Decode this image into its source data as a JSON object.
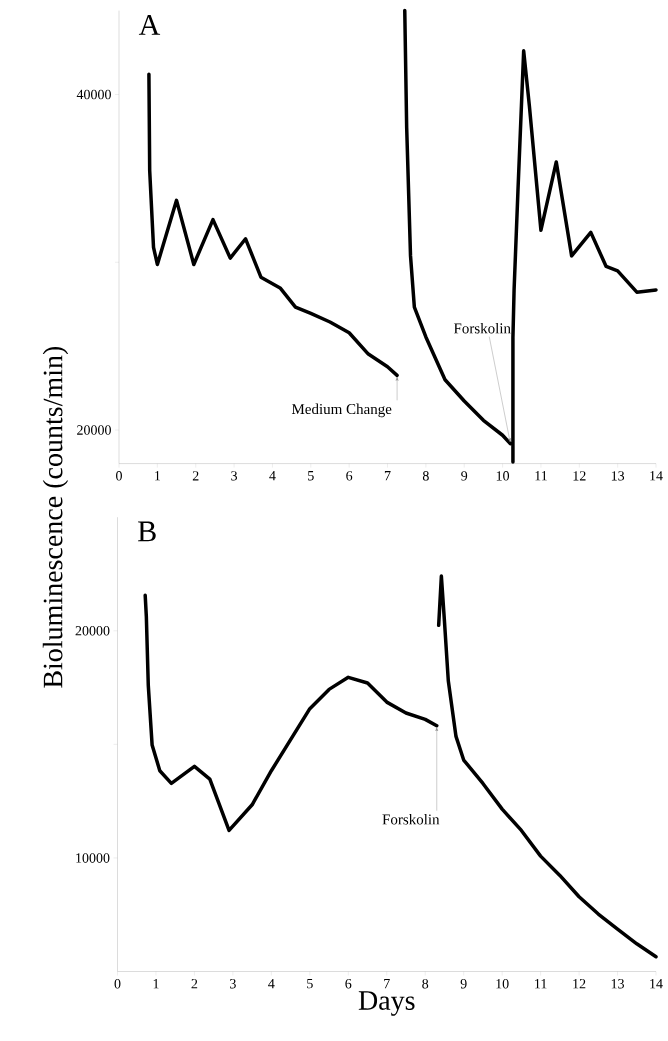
{
  "chart_data": [
    {
      "type": "line",
      "title": "A",
      "xlim": [
        0,
        14
      ],
      "ylim": [
        18000,
        45000
      ],
      "xticks": [
        0,
        1,
        2,
        3,
        4,
        5,
        6,
        7,
        8,
        9,
        10,
        11,
        12,
        13,
        14
      ],
      "yticks": [
        20000,
        {
          "value": 30000,
          "label": null
        },
        40000
      ],
      "series": [
        {
          "color": "#000000",
          "x": [
            0.78,
            0.8,
            0.9,
            1.0,
            1.5,
            1.95,
            2.45,
            2.9,
            3.3,
            3.7,
            4.2,
            4.6,
            5.0,
            5.5,
            6.0,
            6.5,
            7.0,
            7.25,
            7.35,
            7.45,
            7.5,
            7.6,
            7.7,
            8.0,
            8.5,
            9.0,
            9.5,
            10.0,
            10.2,
            10.25,
            10.27,
            10.27,
            10.3,
            10.4,
            10.55,
            10.7,
            11.0,
            11.4,
            11.8,
            12.3,
            12.7,
            13.0,
            13.5,
            14.0
          ],
          "values": [
            41200,
            35470,
            30890,
            29870,
            33690,
            29870,
            32540,
            30250,
            31400,
            29110,
            28470,
            27330,
            26950,
            26440,
            25800,
            24530,
            23770,
            23260,
            null,
            45000,
            38020,
            30380,
            27330,
            25550,
            23000,
            21730,
            20580,
            19690,
            19190,
            null,
            18100,
            25500,
            28350,
            34200,
            42600,
            39290,
            31910,
            35980,
            30380,
            31780,
            29750,
            29490,
            28220,
            28350
          ]
        }
      ],
      "annotations": [
        {
          "text": "Medium Change",
          "x": 7.25,
          "y": 23260
        },
        {
          "text": "Forskolin",
          "x": 10.2,
          "y": 19190
        }
      ]
    },
    {
      "type": "line",
      "title": "B",
      "xlabel": "Days",
      "ylabel": "Bioluminescence (counts/min)",
      "xlim": [
        0,
        14
      ],
      "ylim": [
        5000,
        25000
      ],
      "xticks": [
        0,
        1,
        2,
        3,
        4,
        5,
        6,
        7,
        8,
        9,
        10,
        11,
        12,
        13,
        14
      ],
      "yticks": [
        {
          "value": 15000,
          "label": null
        },
        10000,
        20000
      ],
      "series": [
        {
          "color": "#000000",
          "x": [
            0.72,
            0.75,
            0.8,
            0.9,
            1.1,
            1.4,
            2.0,
            2.4,
            2.9,
            3.5,
            4.0,
            5.0,
            5.5,
            6.0,
            6.5,
            7.0,
            7.5,
            8.0,
            8.3,
            8.32,
            8.35,
            8.42,
            8.5,
            8.6,
            8.8,
            9.0,
            9.5,
            10.0,
            10.5,
            11.0,
            11.5,
            12.0,
            12.5,
            13.0,
            13.5,
            14.0
          ],
          "values": [
            21560,
            20620,
            17610,
            14970,
            13840,
            13280,
            14030,
            13470,
            11210,
            12340,
            13840,
            16570,
            17420,
            17950,
            17700,
            16860,
            16380,
            16100,
            15820,
            null,
            20240,
            22410,
            20430,
            17800,
            15350,
            14310,
            13280,
            12150,
            11210,
            10080,
            9230,
            8290,
            7530,
            6870,
            6220,
            5650
          ]
        }
      ],
      "annotations": [
        {
          "text": "Forskolin",
          "x": 8.3,
          "y": 15820
        }
      ]
    }
  ]
}
